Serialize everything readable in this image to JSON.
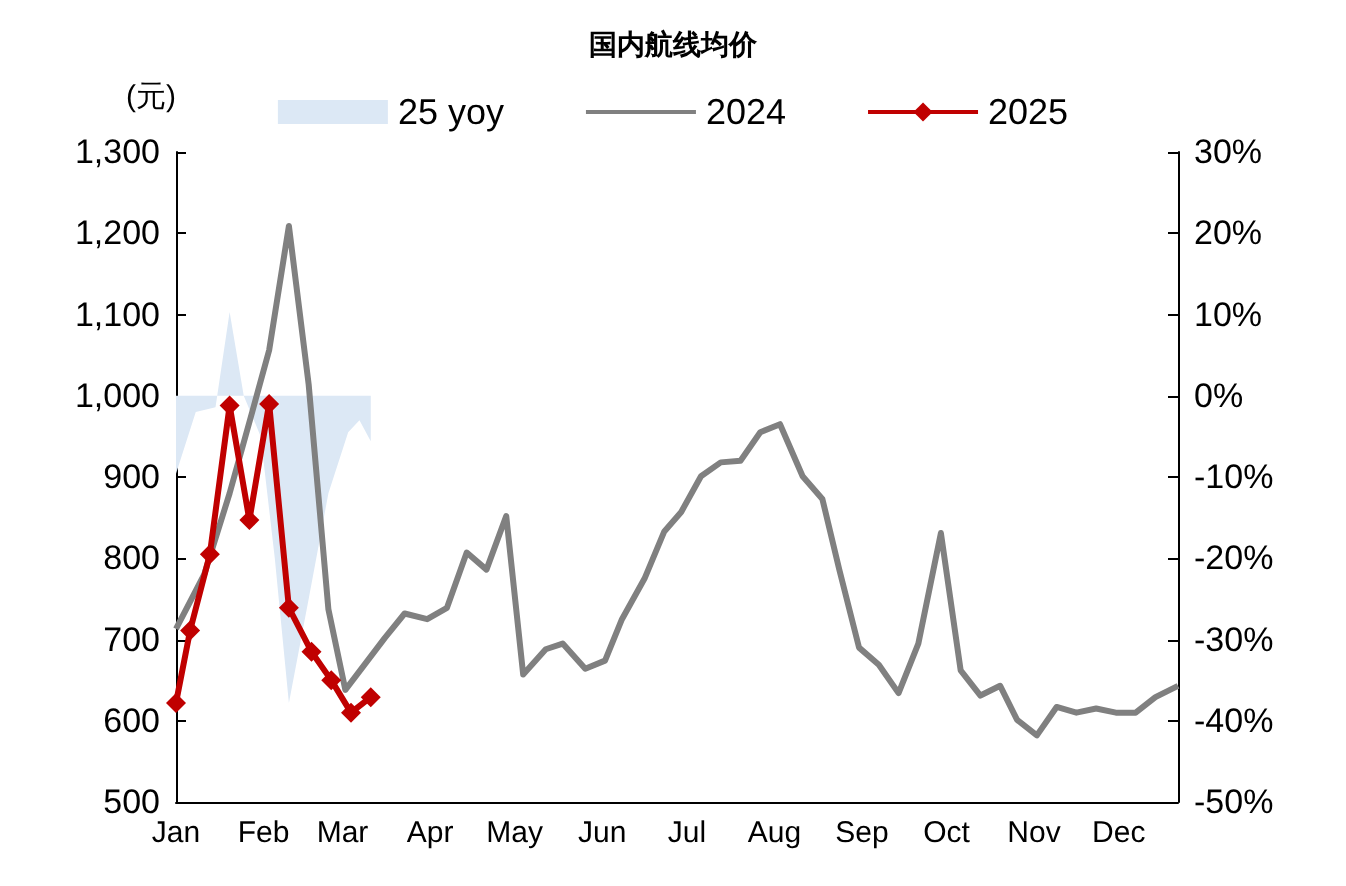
{
  "chart_data": {
    "type": "line",
    "title": "国内航线均价",
    "ylabel": "(元)",
    "xlim": [
      "--01-01",
      "--12-22"
    ],
    "xticks": [
      {
        "value": "--01-01",
        "label": "Jan"
      },
      {
        "value": "--02-01",
        "label": "Feb"
      },
      {
        "value": "--03-01",
        "label": "Mar"
      },
      {
        "value": "--04-01",
        "label": "Apr"
      },
      {
        "value": "--05-01",
        "label": "May"
      },
      {
        "value": "--06-01",
        "label": "Jun"
      },
      {
        "value": "--07-01",
        "label": "Jul"
      },
      {
        "value": "--08-01",
        "label": "Aug"
      },
      {
        "value": "--09-01",
        "label": "Sep"
      },
      {
        "value": "--10-01",
        "label": "Oct"
      },
      {
        "value": "--11-01",
        "label": "Nov"
      },
      {
        "value": "--12-01",
        "label": "Dec"
      }
    ],
    "ylim": [
      500,
      1300
    ],
    "yticks": [
      500,
      600,
      700,
      800,
      900,
      {
        "value": 1000,
        "label": "1,000"
      },
      {
        "value": 1100,
        "label": "1,100"
      },
      {
        "value": 1200,
        "label": "1,200"
      },
      {
        "value": 1300,
        "label": "1,300"
      }
    ],
    "y2lim": [
      -50,
      30
    ],
    "y2ticks": [
      {
        "value": -50,
        "label": "-50%"
      },
      {
        "value": -40,
        "label": "-40%"
      },
      {
        "value": -30,
        "label": "-30%"
      },
      {
        "value": -20,
        "label": "-20%"
      },
      {
        "value": -10,
        "label": "-10%"
      },
      {
        "value": 0,
        "label": "0%"
      },
      {
        "value": 10,
        "label": "10%"
      },
      {
        "value": 20,
        "label": "20%"
      },
      {
        "value": 30,
        "label": "30%"
      }
    ],
    "grid": false,
    "legend": "top",
    "series": [
      {
        "name": "25 yoy",
        "type": "area",
        "axis": "y2",
        "color": "#dce8f5",
        "x": [
          "--01-01",
          "--01-08",
          "--01-15",
          "--01-20",
          "--01-25",
          "--01-31",
          "--02-05",
          "--02-10",
          "--02-17",
          "--02-24",
          "--03-03",
          "--03-07",
          "--03-11"
        ],
        "values": [
          -9.6,
          -2,
          -1.4,
          10.3,
          0,
          -5,
          -20,
          -37.8,
          -25,
          -12,
          -4.5,
          -3,
          -5.6
        ]
      },
      {
        "name": "2024",
        "color": "#808080",
        "marker": "none",
        "x": [
          "--01-01",
          "--01-11",
          "--01-20",
          "--01-28",
          "--02-03",
          "--02-10",
          "--02-17",
          "--02-24",
          "--03-02",
          "--03-09",
          "--03-16",
          "--03-23",
          "--03-31",
          "--04-07",
          "--04-14",
          "--04-21",
          "--04-28",
          "--05-04",
          "--05-12",
          "--05-18",
          "--05-26",
          "--06-02",
          "--06-08",
          "--06-16",
          "--06-23",
          "--06-29",
          "--07-06",
          "--07-13",
          "--07-20",
          "--07-27",
          "--08-03",
          "--08-11",
          "--08-18",
          "--08-24",
          "--08-31",
          "--09-07",
          "--09-14",
          "--09-21",
          "--09-29",
          "--10-06",
          "--10-13",
          "--10-20",
          "--10-26",
          "--11-02",
          "--11-09",
          "--11-16",
          "--11-23",
          "--11-30",
          "--12-07",
          "--12-14",
          "--12-22"
        ],
        "values": [
          713,
          780,
          880,
          980,
          1056,
          1209,
          1014,
          737,
          638,
          670,
          702,
          732,
          725,
          739,
          807,
          786,
          852,
          657,
          688,
          695,
          664,
          674,
          725,
          775,
          833,
          857,
          901,
          918,
          920,
          955,
          965,
          901,
          873,
          786,
          690,
          669,
          634,
          695,
          831,
          662,
          631,
          643,
          601,
          582,
          617,
          610,
          615,
          610,
          610,
          629,
          643
        ]
      },
      {
        "name": "2025",
        "color": "#c00000",
        "marker": "diamond",
        "x": [
          "--01-01",
          "--01-06",
          "--01-13",
          "--01-20",
          "--01-27",
          "--02-03",
          "--02-10",
          "--02-18",
          "--02-25",
          "--03-04",
          "--03-11"
        ],
        "values": [
          622,
          711,
          805,
          988,
          847,
          990,
          739,
          685,
          650,
          610,
          629
        ]
      }
    ]
  }
}
